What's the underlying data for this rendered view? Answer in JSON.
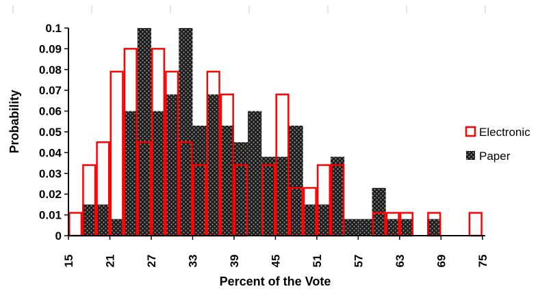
{
  "chart_data": {
    "type": "bar",
    "xlabel": "Percent of the Vote",
    "ylabel": "Probability",
    "ylim": [
      0,
      0.1
    ],
    "y_ticks": [
      "0",
      "0.01",
      "0.02",
      "0.03",
      "0.04",
      "0.05",
      "0.06",
      "0.07",
      "0.08",
      "0.09",
      "0.1"
    ],
    "x_ticks": [
      "15",
      "21",
      "27",
      "33",
      "39",
      "45",
      "51",
      "57",
      "63",
      "69",
      "75"
    ],
    "bin_width": 2,
    "bin_starts": [
      15,
      17,
      19,
      21,
      23,
      25,
      27,
      29,
      31,
      33,
      35,
      37,
      39,
      41,
      43,
      45,
      47,
      49,
      51,
      53,
      55,
      57,
      59,
      61,
      63,
      65,
      67,
      69,
      71,
      73
    ],
    "legend_position": "right",
    "series": [
      {
        "name": "Electronic",
        "style": "outline",
        "color": "#ff0000",
        "values": [
          0.011,
          0.034,
          0.045,
          0.079,
          0.09,
          0.045,
          0.09,
          0.079,
          0.045,
          0.034,
          0.079,
          0.068,
          0.034,
          0,
          0.034,
          0.068,
          0.023,
          0.023,
          0.034,
          0.034,
          0,
          0,
          0.011,
          0.011,
          0.011,
          0,
          0.011,
          0,
          0,
          0.011
        ]
      },
      {
        "name": "Paper",
        "style": "hatched",
        "color": "#000000",
        "values": [
          0,
          0.015,
          0.015,
          0.008,
          0.06,
          0.1,
          0.06,
          0.068,
          0.1,
          0.053,
          0.068,
          0.053,
          0.045,
          0.06,
          0.038,
          0.038,
          0.053,
          0.015,
          0.015,
          0.038,
          0.008,
          0.008,
          0.023,
          0.008,
          0.008,
          0,
          0.008,
          0,
          0,
          0
        ]
      }
    ]
  }
}
